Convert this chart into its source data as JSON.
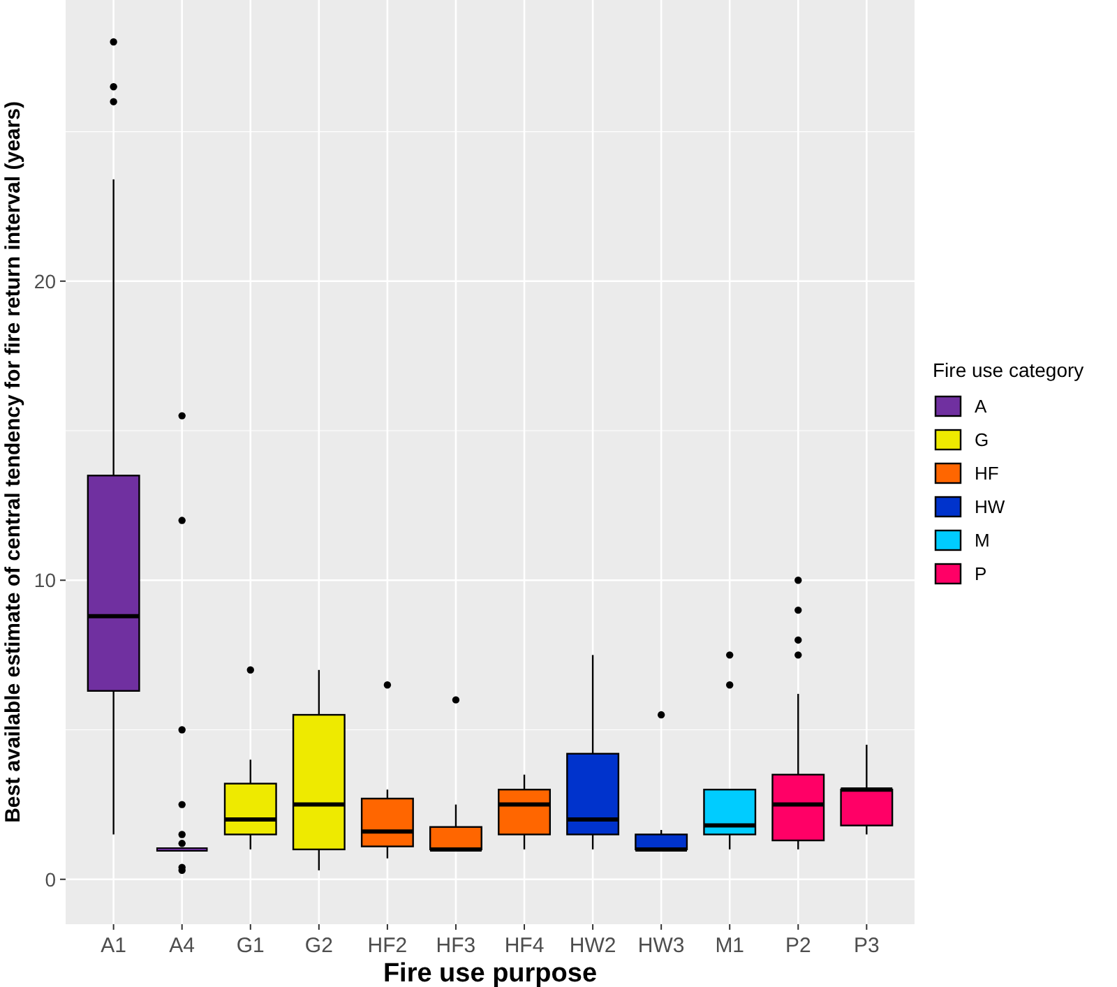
{
  "chart_data": {
    "type": "box",
    "xlabel": "Fire use purpose",
    "ylabel": "Best available estimate of central tendency for fire return interval (years)",
    "legend_title": "Fire use category",
    "legend": "right",
    "grid": true,
    "categories": [
      "A1",
      "A4",
      "G1",
      "G2",
      "HF2",
      "HF3",
      "HF4",
      "HW2",
      "HW3",
      "M1",
      "P2",
      "P3"
    ],
    "ylim": [
      -1.5,
      29.4
    ],
    "yticks": [
      0,
      10,
      20
    ],
    "series": [
      {
        "name": "A",
        "color": "#7030a0",
        "x": [
          "A1",
          "A4"
        ],
        "boxes": [
          {
            "low": 1.5,
            "q1": 6.3,
            "median": 8.8,
            "q3": 13.5,
            "high": 23.4,
            "outliers": [
              26,
              26.5,
              28
            ]
          },
          {
            "low": 1,
            "q1": 1,
            "median": 1,
            "q3": 1,
            "high": 1,
            "outliers": [
              15.5,
              12,
              5,
              2.5,
              1.5,
              1.2,
              0.4,
              0.3
            ]
          }
        ]
      },
      {
        "name": "G",
        "color": "#eeea00",
        "x": [
          "G1",
          "G2"
        ],
        "boxes": [
          {
            "low": 1,
            "q1": 1.5,
            "median": 2,
            "q3": 3.2,
            "high": 4,
            "outliers": [
              7
            ]
          },
          {
            "low": 0.3,
            "q1": 1,
            "median": 2.5,
            "q3": 5.5,
            "high": 7
          }
        ]
      },
      {
        "name": "HF",
        "color": "#ff6600",
        "x": [
          "HF2",
          "HF3",
          "HF4"
        ],
        "boxes": [
          {
            "low": 0.7,
            "q1": 1.1,
            "median": 1.6,
            "q3": 2.7,
            "high": 3,
            "outliers": [
              6.5
            ]
          },
          {
            "low": 1,
            "q1": 1,
            "median": 1,
            "q3": 1.75,
            "high": 2.5,
            "outliers": [
              6
            ]
          },
          {
            "low": 1,
            "q1": 1.5,
            "median": 2.5,
            "q3": 3,
            "high": 3.5
          }
        ]
      },
      {
        "name": "HW",
        "color": "#0033cc",
        "x": [
          "HW2",
          "HW3"
        ],
        "boxes": [
          {
            "low": 1,
            "q1": 1.5,
            "median": 2,
            "q3": 4.2,
            "high": 7.5
          },
          {
            "low": 1,
            "q1": 1,
            "median": 1,
            "q3": 1.5,
            "high": 1.65,
            "outliers": [
              5.5
            ]
          }
        ]
      },
      {
        "name": "M",
        "color": "#00ccff",
        "x": [
          "M1"
        ],
        "boxes": [
          {
            "low": 1,
            "q1": 1.5,
            "median": 1.8,
            "q3": 3,
            "high": 3,
            "outliers": [
              7.5,
              6.5
            ]
          }
        ]
      },
      {
        "name": "P",
        "color": "#ff0066",
        "x": [
          "P2",
          "P3"
        ],
        "boxes": [
          {
            "low": 1,
            "q1": 1.3,
            "median": 2.5,
            "q3": 3.5,
            "high": 6.2,
            "outliers": [
              10,
              9,
              8,
              7.5
            ]
          },
          {
            "low": 1.5,
            "q1": 1.8,
            "median": 3,
            "q3": 3,
            "high": 4.5
          }
        ]
      }
    ]
  }
}
